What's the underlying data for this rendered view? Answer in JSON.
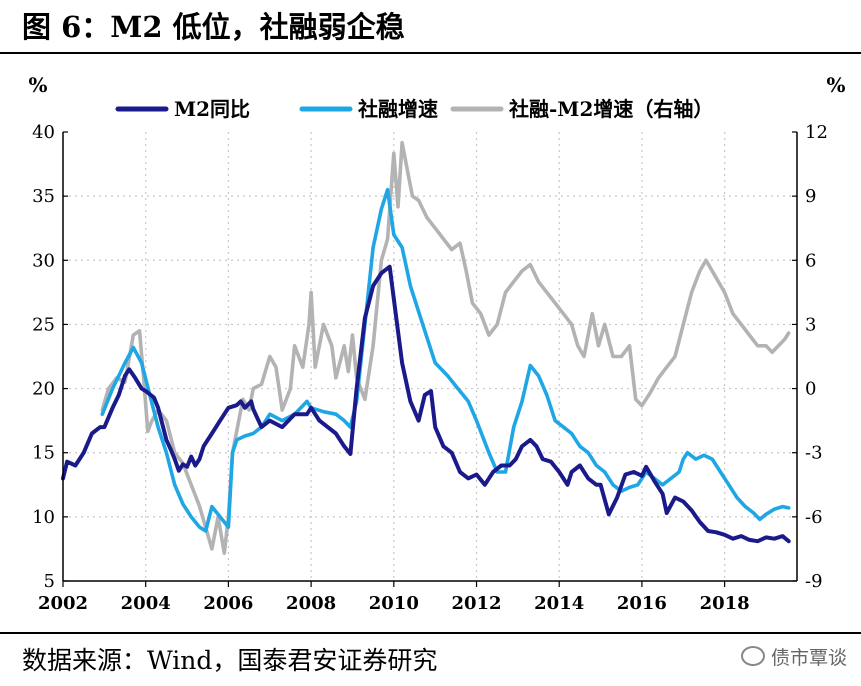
{
  "title": "图 6：M2 低位，社融弱企稳",
  "footer": "数据来源：Wind，国泰君安证券研究",
  "watermark": "债市覃谈",
  "chart_data": {
    "type": "line",
    "y_left_unit": "%",
    "y_right_unit": "%",
    "y_left": {
      "min": 5,
      "max": 40,
      "ticks": [
        "5",
        "10",
        "15",
        "20",
        "25",
        "30",
        "35",
        "40"
      ]
    },
    "y_right": {
      "min": -9,
      "max": 12,
      "ticks": [
        "-9",
        "-6",
        "-3",
        "0",
        "3",
        "6",
        "9",
        "12"
      ]
    },
    "x_range": [
      2002,
      2019.75
    ],
    "x_ticks": [
      "2002",
      "2004",
      "2006",
      "2008",
      "2010",
      "2012",
      "2014",
      "2016",
      "2018"
    ],
    "grid": true,
    "legend_position": "top",
    "series": [
      {
        "name": "M2同比",
        "axis": "left",
        "color": "#1a1a8a",
        "points": [
          [
            2002.0,
            13
          ],
          [
            2002.1,
            14.3
          ],
          [
            2002.3,
            14
          ],
          [
            2002.5,
            15
          ],
          [
            2002.7,
            16.5
          ],
          [
            2002.9,
            17
          ],
          [
            2003.0,
            17
          ],
          [
            2003.2,
            18.5
          ],
          [
            2003.35,
            19.5
          ],
          [
            2003.5,
            21
          ],
          [
            2003.6,
            21.5
          ],
          [
            2003.75,
            20.8
          ],
          [
            2003.9,
            20
          ],
          [
            2004.0,
            19.8
          ],
          [
            2004.2,
            19.3
          ],
          [
            2004.3,
            18.5
          ],
          [
            2004.5,
            16
          ],
          [
            2004.6,
            15.3
          ],
          [
            2004.7,
            14.5
          ],
          [
            2004.8,
            13.6
          ],
          [
            2004.9,
            14.1
          ],
          [
            2005.0,
            13.9
          ],
          [
            2005.1,
            14.7
          ],
          [
            2005.2,
            14
          ],
          [
            2005.3,
            14.5
          ],
          [
            2005.4,
            15.5
          ],
          [
            2005.5,
            16
          ],
          [
            2005.6,
            16.5
          ],
          [
            2005.8,
            17.5
          ],
          [
            2006.0,
            18.5
          ],
          [
            2006.2,
            18.7
          ],
          [
            2006.3,
            19
          ],
          [
            2006.4,
            18.5
          ],
          [
            2006.55,
            19
          ],
          [
            2006.6,
            18.4
          ],
          [
            2006.8,
            17
          ],
          [
            2007.0,
            17.5
          ],
          [
            2007.3,
            17
          ],
          [
            2007.6,
            18
          ],
          [
            2007.9,
            18
          ],
          [
            2008.0,
            18.5
          ],
          [
            2008.2,
            17.5
          ],
          [
            2008.4,
            17
          ],
          [
            2008.6,
            16.5
          ],
          [
            2008.8,
            15.5
          ],
          [
            2008.95,
            14.9
          ],
          [
            2009.1,
            20
          ],
          [
            2009.3,
            25.5
          ],
          [
            2009.5,
            28
          ],
          [
            2009.7,
            29
          ],
          [
            2009.9,
            29.5
          ],
          [
            2010.0,
            27
          ],
          [
            2010.2,
            22
          ],
          [
            2010.4,
            19
          ],
          [
            2010.6,
            17.5
          ],
          [
            2010.75,
            19.5
          ],
          [
            2010.9,
            19.8
          ],
          [
            2011.0,
            17
          ],
          [
            2011.2,
            15.5
          ],
          [
            2011.4,
            15
          ],
          [
            2011.6,
            13.5
          ],
          [
            2011.8,
            13
          ],
          [
            2012.0,
            13.3
          ],
          [
            2012.2,
            12.5
          ],
          [
            2012.4,
            13.5
          ],
          [
            2012.6,
            14
          ],
          [
            2012.8,
            14
          ],
          [
            2012.95,
            14.5
          ],
          [
            2013.1,
            15.5
          ],
          [
            2013.3,
            16
          ],
          [
            2013.45,
            15.5
          ],
          [
            2013.6,
            14.5
          ],
          [
            2013.8,
            14.3
          ],
          [
            2014.0,
            13.5
          ],
          [
            2014.2,
            12.5
          ],
          [
            2014.3,
            13.5
          ],
          [
            2014.5,
            14
          ],
          [
            2014.7,
            13
          ],
          [
            2014.9,
            12.5
          ],
          [
            2015.0,
            12.5
          ],
          [
            2015.2,
            10.2
          ],
          [
            2015.4,
            11.5
          ],
          [
            2015.6,
            13.3
          ],
          [
            2015.8,
            13.5
          ],
          [
            2016.0,
            13.2
          ],
          [
            2016.1,
            13.9
          ],
          [
            2016.3,
            12.8
          ],
          [
            2016.5,
            11.8
          ],
          [
            2016.6,
            10.3
          ],
          [
            2016.8,
            11.5
          ],
          [
            2017.0,
            11.2
          ],
          [
            2017.2,
            10.5
          ],
          [
            2017.4,
            9.6
          ],
          [
            2017.6,
            8.9
          ],
          [
            2017.8,
            8.8
          ],
          [
            2018.0,
            8.6
          ],
          [
            2018.2,
            8.3
          ],
          [
            2018.4,
            8.5
          ],
          [
            2018.6,
            8.2
          ],
          [
            2018.8,
            8.1
          ],
          [
            2019.0,
            8.4
          ],
          [
            2019.2,
            8.3
          ],
          [
            2019.4,
            8.5
          ],
          [
            2019.55,
            8.1
          ]
        ]
      },
      {
        "name": "社融增速",
        "axis": "left",
        "color": "#1ea7e4",
        "points": [
          [
            2002.95,
            18
          ],
          [
            2003.2,
            20
          ],
          [
            2003.5,
            22
          ],
          [
            2003.7,
            23.2
          ],
          [
            2003.9,
            22
          ],
          [
            2004.1,
            19.5
          ],
          [
            2004.3,
            17
          ],
          [
            2004.5,
            15
          ],
          [
            2004.7,
            12.5
          ],
          [
            2004.9,
            11
          ],
          [
            2005.1,
            10
          ],
          [
            2005.3,
            9.2
          ],
          [
            2005.45,
            8.9
          ],
          [
            2005.6,
            10.8
          ],
          [
            2005.8,
            10
          ],
          [
            2006.0,
            9.2
          ],
          [
            2006.1,
            15
          ],
          [
            2006.2,
            16
          ],
          [
            2006.4,
            16.3
          ],
          [
            2006.6,
            16.5
          ],
          [
            2006.8,
            17
          ],
          [
            2007.0,
            18
          ],
          [
            2007.3,
            17.5
          ],
          [
            2007.6,
            18
          ],
          [
            2007.9,
            19
          ],
          [
            2008.0,
            18.5
          ],
          [
            2008.3,
            18.2
          ],
          [
            2008.6,
            18
          ],
          [
            2008.8,
            17.5
          ],
          [
            2008.95,
            17
          ],
          [
            2009.1,
            19
          ],
          [
            2009.3,
            25
          ],
          [
            2009.5,
            31
          ],
          [
            2009.7,
            34
          ],
          [
            2009.85,
            35.5
          ],
          [
            2010.0,
            32
          ],
          [
            2010.2,
            31
          ],
          [
            2010.4,
            28
          ],
          [
            2010.6,
            26
          ],
          [
            2010.8,
            24
          ],
          [
            2011.0,
            22
          ],
          [
            2011.3,
            21
          ],
          [
            2011.5,
            20.2
          ],
          [
            2011.8,
            19
          ],
          [
            2012.0,
            17.5
          ],
          [
            2012.3,
            15
          ],
          [
            2012.5,
            13.5
          ],
          [
            2012.7,
            13.5
          ],
          [
            2012.9,
            17
          ],
          [
            2013.1,
            19
          ],
          [
            2013.3,
            21.8
          ],
          [
            2013.5,
            21
          ],
          [
            2013.7,
            19.5
          ],
          [
            2013.9,
            17.5
          ],
          [
            2014.1,
            17
          ],
          [
            2014.3,
            16.5
          ],
          [
            2014.5,
            15.5
          ],
          [
            2014.7,
            15
          ],
          [
            2014.9,
            14
          ],
          [
            2015.1,
            13.5
          ],
          [
            2015.3,
            12.5
          ],
          [
            2015.5,
            12
          ],
          [
            2015.7,
            12.3
          ],
          [
            2015.9,
            12.5
          ],
          [
            2016.1,
            13.5
          ],
          [
            2016.3,
            13
          ],
          [
            2016.5,
            12.5
          ],
          [
            2016.7,
            13
          ],
          [
            2016.9,
            13.5
          ],
          [
            2017.0,
            14.5
          ],
          [
            2017.1,
            15
          ],
          [
            2017.3,
            14.5
          ],
          [
            2017.5,
            14.8
          ],
          [
            2017.7,
            14.5
          ],
          [
            2017.9,
            13.5
          ],
          [
            2018.1,
            12.5
          ],
          [
            2018.3,
            11.5
          ],
          [
            2018.5,
            10.8
          ],
          [
            2018.7,
            10.3
          ],
          [
            2018.85,
            9.8
          ],
          [
            2019.0,
            10.2
          ],
          [
            2019.2,
            10.6
          ],
          [
            2019.4,
            10.8
          ],
          [
            2019.55,
            10.7
          ]
        ]
      },
      {
        "name": "社融-M2增速（右轴）",
        "axis": "right",
        "color": "#b3b3b3",
        "points": [
          [
            2002.95,
            -1
          ],
          [
            2003.1,
            0
          ],
          [
            2003.3,
            0.5
          ],
          [
            2003.5,
            0.3
          ],
          [
            2003.7,
            2.5
          ],
          [
            2003.85,
            2.7
          ],
          [
            2003.95,
            0.5
          ],
          [
            2004.05,
            -2
          ],
          [
            2004.15,
            -1.5
          ],
          [
            2004.3,
            -1
          ],
          [
            2004.5,
            -1.5
          ],
          [
            2004.7,
            -3
          ],
          [
            2004.9,
            -3.5
          ],
          [
            2005.1,
            -4.5
          ],
          [
            2005.3,
            -5.5
          ],
          [
            2005.45,
            -6.5
          ],
          [
            2005.6,
            -7.5
          ],
          [
            2005.75,
            -6
          ],
          [
            2005.9,
            -7.7
          ],
          [
            2006.0,
            -6
          ],
          [
            2006.1,
            -3
          ],
          [
            2006.2,
            -2
          ],
          [
            2006.35,
            -0.5
          ],
          [
            2006.5,
            -1
          ],
          [
            2006.6,
            0
          ],
          [
            2006.8,
            0.2
          ],
          [
            2007.0,
            1.5
          ],
          [
            2007.15,
            1
          ],
          [
            2007.3,
            -1
          ],
          [
            2007.5,
            0
          ],
          [
            2007.6,
            2
          ],
          [
            2007.8,
            1
          ],
          [
            2007.95,
            3
          ],
          [
            2008.0,
            4.5
          ],
          [
            2008.1,
            1
          ],
          [
            2008.3,
            3
          ],
          [
            2008.5,
            2
          ],
          [
            2008.6,
            0.5
          ],
          [
            2008.8,
            2
          ],
          [
            2008.9,
            0.8
          ],
          [
            2009.0,
            2.5
          ],
          [
            2009.1,
            0.5
          ],
          [
            2009.3,
            -0.5
          ],
          [
            2009.5,
            2
          ],
          [
            2009.7,
            6
          ],
          [
            2009.85,
            7
          ],
          [
            2010.0,
            11
          ],
          [
            2010.1,
            8.5
          ],
          [
            2010.2,
            11.5
          ],
          [
            2010.3,
            10.5
          ],
          [
            2010.45,
            9
          ],
          [
            2010.6,
            8.8
          ],
          [
            2010.8,
            8
          ],
          [
            2011.0,
            7.5
          ],
          [
            2011.2,
            7
          ],
          [
            2011.4,
            6.5
          ],
          [
            2011.6,
            6.8
          ],
          [
            2011.75,
            5.5
          ],
          [
            2011.9,
            4
          ],
          [
            2012.1,
            3.5
          ],
          [
            2012.3,
            2.5
          ],
          [
            2012.5,
            3
          ],
          [
            2012.7,
            4.5
          ],
          [
            2012.9,
            5
          ],
          [
            2013.1,
            5.5
          ],
          [
            2013.3,
            5.8
          ],
          [
            2013.5,
            5
          ],
          [
            2013.7,
            4.5
          ],
          [
            2013.9,
            4
          ],
          [
            2014.1,
            3.5
          ],
          [
            2014.3,
            3
          ],
          [
            2014.45,
            2
          ],
          [
            2014.6,
            1.5
          ],
          [
            2014.8,
            3.5
          ],
          [
            2014.95,
            2
          ],
          [
            2015.1,
            3
          ],
          [
            2015.3,
            1.5
          ],
          [
            2015.5,
            1.5
          ],
          [
            2015.7,
            2
          ],
          [
            2015.85,
            -0.5
          ],
          [
            2016.0,
            -0.8
          ],
          [
            2016.2,
            -0.2
          ],
          [
            2016.4,
            0.5
          ],
          [
            2016.6,
            1
          ],
          [
            2016.8,
            1.5
          ],
          [
            2017.0,
            3
          ],
          [
            2017.2,
            4.5
          ],
          [
            2017.4,
            5.5
          ],
          [
            2017.55,
            6
          ],
          [
            2017.7,
            5.5
          ],
          [
            2017.85,
            5
          ],
          [
            2018.0,
            4.5
          ],
          [
            2018.2,
            3.5
          ],
          [
            2018.4,
            3
          ],
          [
            2018.6,
            2.5
          ],
          [
            2018.8,
            2
          ],
          [
            2019.0,
            2
          ],
          [
            2019.15,
            1.7
          ],
          [
            2019.3,
            2
          ],
          [
            2019.45,
            2.3
          ],
          [
            2019.55,
            2.6
          ]
        ]
      }
    ]
  }
}
